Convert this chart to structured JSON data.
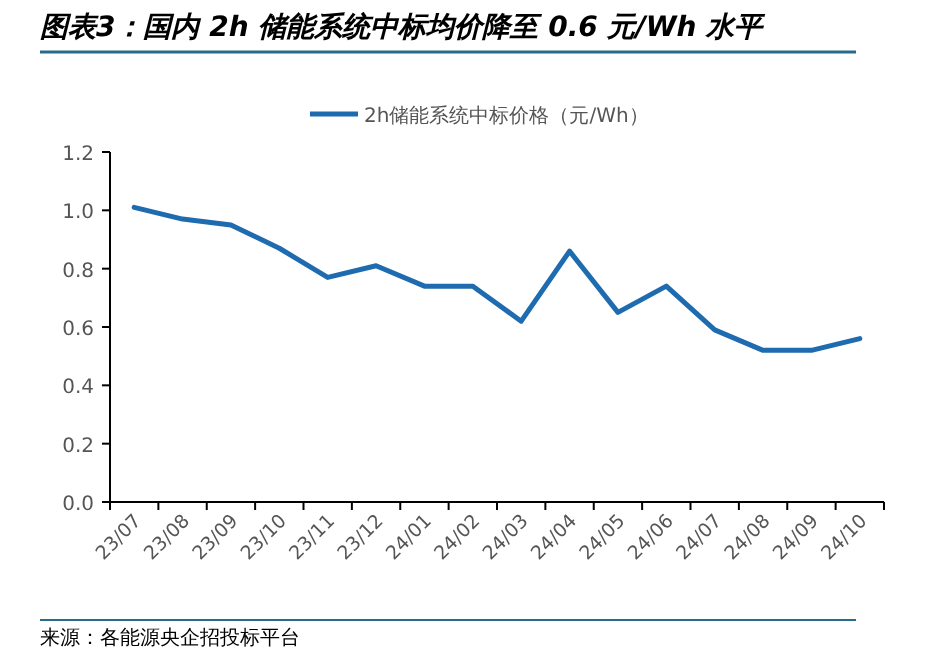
{
  "chart_data": {
    "type": "line",
    "title": "图表3：国内 2h 储能系统中标均价降至 0.6 元/Wh 水平",
    "categories": [
      "23/07",
      "23/08",
      "23/09",
      "23/10",
      "23/11",
      "23/12",
      "24/01",
      "24/02",
      "24/03",
      "24/04",
      "24/05",
      "24/06",
      "24/07",
      "24/08",
      "24/09",
      "24/10"
    ],
    "series": [
      {
        "name": "2h储能系统中标价格（元/Wh）",
        "color": "#1f6bb0",
        "values": [
          1.01,
          0.97,
          0.95,
          0.87,
          0.77,
          0.81,
          0.74,
          0.74,
          0.62,
          0.86,
          0.65,
          0.74,
          0.59,
          0.52,
          0.52,
          0.56
        ]
      }
    ],
    "ylim": [
      0,
      1.2
    ],
    "yticks": [
      {
        "value": 0,
        "label": "0.0"
      },
      0.2,
      0.4,
      0.6,
      0.8,
      {
        "value": 1,
        "label": "1.0"
      },
      1.2
    ],
    "legend": "top",
    "grid": false,
    "marker": "none",
    "line_style": "solid",
    "annotations": [
      "来源：各能源央企招投标平台"
    ]
  }
}
